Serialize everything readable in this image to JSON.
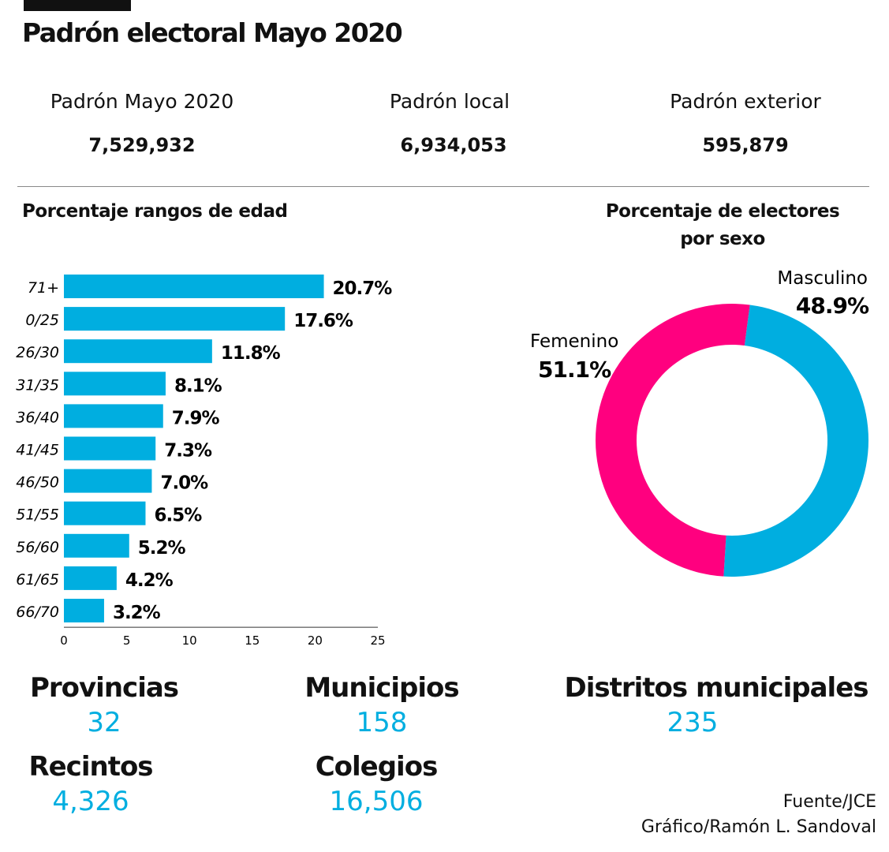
{
  "title": "Padrón electoral Mayo 2020",
  "stats": [
    {
      "label": "Padrón Mayo 2020",
      "value": "7,529,932"
    },
    {
      "label": "Padrón local",
      "value": "6,934,053"
    },
    {
      "label": "Padrón exterior",
      "value": "595,879"
    }
  ],
  "chart_data": [
    {
      "type": "bar",
      "orientation": "horizontal",
      "title": "Porcentaje rangos de edad",
      "categories": [
        "71+",
        "0/25",
        "26/30",
        "31/35",
        "36/40",
        "41/45",
        "46/50",
        "51/55",
        "56/60",
        "61/65",
        "66/70"
      ],
      "values": [
        20.7,
        17.6,
        11.8,
        8.1,
        7.9,
        7.3,
        7.0,
        6.5,
        5.2,
        4.2,
        3.2
      ],
      "data_labels": [
        "20.7%",
        "17.6%",
        "11.8%",
        "8.1%",
        "7.9%",
        "7.3%",
        "7.0%",
        "6.5%",
        "5.2%",
        "4.2%",
        "3.2%"
      ],
      "xlim": [
        0,
        25
      ],
      "xticks": [
        "0",
        "5",
        "10",
        "15",
        "20",
        "25"
      ],
      "grid": false,
      "color": "#00aee0"
    },
    {
      "type": "pie",
      "variant": "donut",
      "title_lines": [
        "Porcentaje de electores",
        "por sexo"
      ],
      "slices": [
        {
          "label": "Masculino",
          "value": 48.9,
          "display": "48.9%",
          "color": "#00aee0"
        },
        {
          "label": "Femenino",
          "value": 51.1,
          "display": "51.1%",
          "color": "#ff007f"
        }
      ]
    }
  ],
  "counts": [
    {
      "label": "Provincias",
      "value": "32"
    },
    {
      "label": "Municipios",
      "value": "158"
    },
    {
      "label": "Distritos municipales",
      "value": "235"
    },
    {
      "label": "Recintos",
      "value": "4,326"
    },
    {
      "label": "Colegios",
      "value": "16,506"
    }
  ],
  "credits": {
    "source": "Fuente/JCE",
    "graphic": "Gráfico/Ramón L. Sandoval"
  }
}
